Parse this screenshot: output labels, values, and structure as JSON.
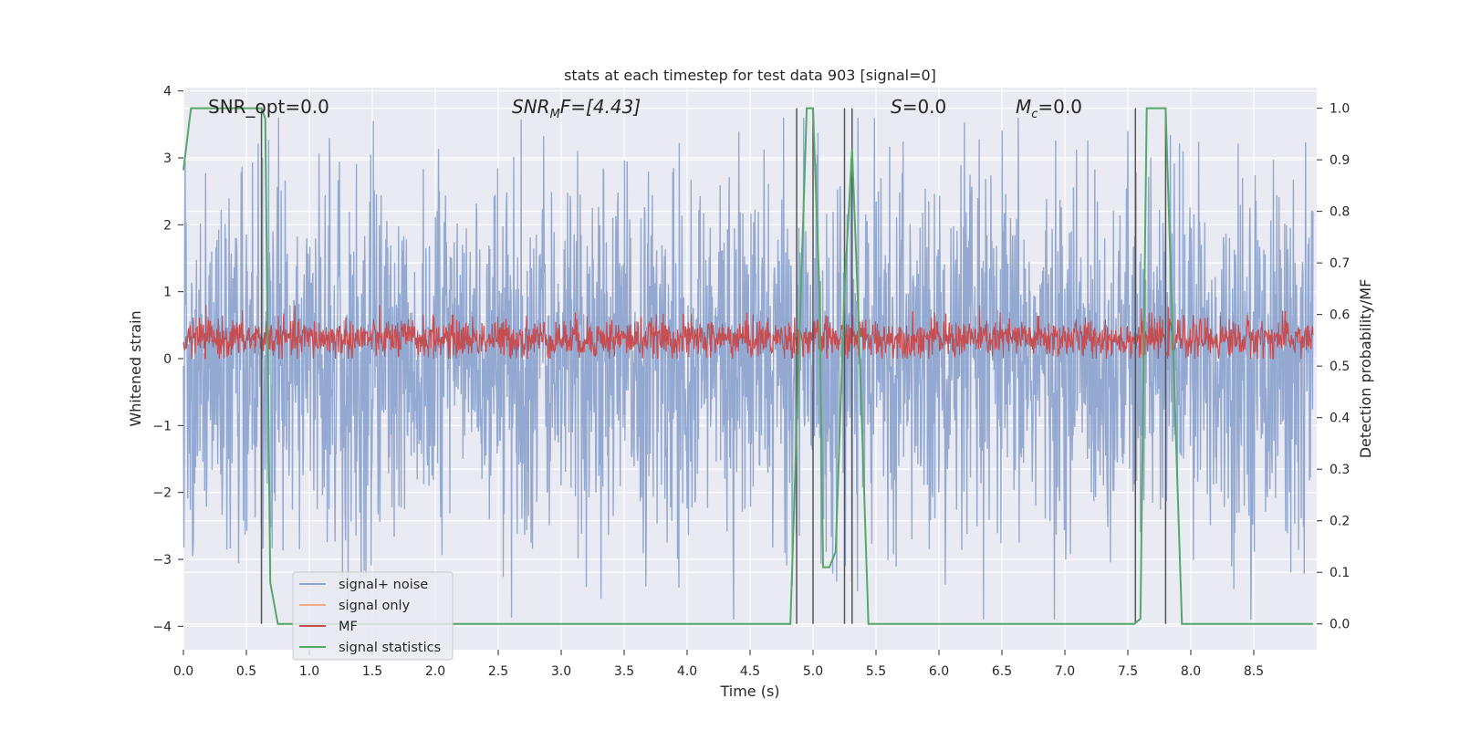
{
  "chart_data": {
    "type": "line",
    "title": "stats at each timestep for test data 903 [signal=0]",
    "xlabel": "Time (s)",
    "ylabel": "Whitened strain",
    "ylabel_right": "Detection probability/MF",
    "xlim": [
      0.0,
      9.0
    ],
    "ylim": [
      -4.35,
      4.05
    ],
    "ylim_right": [
      -0.05,
      1.04
    ],
    "xticks": [
      "0.0",
      "0.5",
      "1.0",
      "1.5",
      "2.0",
      "2.5",
      "3.0",
      "3.5",
      "4.0",
      "4.5",
      "5.0",
      "5.5",
      "6.0",
      "6.5",
      "7.0",
      "7.5",
      "8.0",
      "8.5"
    ],
    "xtick_values": [
      0.0,
      0.5,
      1.0,
      1.5,
      2.0,
      2.5,
      3.0,
      3.5,
      4.0,
      4.5,
      5.0,
      5.5,
      6.0,
      6.5,
      7.0,
      7.5,
      8.0,
      8.5
    ],
    "yticks": [
      "4",
      "3",
      "2",
      "1",
      "0",
      "−1",
      "−2",
      "−3",
      "−4"
    ],
    "ytick_values": [
      4,
      3,
      2,
      1,
      0,
      -1,
      -2,
      -3,
      -4
    ],
    "yticks_right": [
      "1.0",
      "0.9",
      "0.8",
      "0.7",
      "0.6",
      "0.5",
      "0.4",
      "0.3",
      "0.2",
      "0.1",
      "0.0"
    ],
    "ytick_right_values": [
      1.0,
      0.9,
      0.8,
      0.7,
      0.6,
      0.5,
      0.4,
      0.3,
      0.2,
      0.1,
      0.0
    ],
    "grid": true,
    "legend_position": "lower-left",
    "annotations": {
      "snr_opt": "SNR_opt=0.0",
      "snr_mf_main": "SNR",
      "snr_mf_sub": "M",
      "snr_mf_tail": "F=[4.43]",
      "s_main": "S",
      "s_tail": "=0.0",
      "mc_main": "M",
      "mc_sub": "c",
      "mc_tail": "=0.0"
    },
    "series": [
      {
        "name": "signal+ noise",
        "color": "#8fa5cf",
        "description_values": "whitened noise, roughly between -3.9 and 3.6",
        "band": {
          "min": -3.9,
          "max": 3.6,
          "typical_abs": 1.3
        }
      },
      {
        "name": "signal only",
        "color": "#f0a987",
        "values": []
      },
      {
        "name": "MF",
        "color": "#c44e52",
        "band": {
          "min": 0.0,
          "max": 0.8,
          "center": 0.3
        }
      },
      {
        "name": "signal statistics",
        "color": "#55a868",
        "axis": "right",
        "x": [
          0.0,
          0.06,
          0.1,
          0.5,
          0.55,
          0.62,
          0.65,
          0.69,
          0.75,
          1.0,
          2.0,
          3.0,
          4.0,
          4.5,
          4.82,
          4.95,
          5.0,
          5.05,
          5.08,
          5.13,
          5.18,
          5.25,
          5.31,
          5.36,
          5.44,
          5.6,
          6.0,
          7.0,
          7.5,
          7.55,
          7.6,
          7.65,
          7.8,
          7.87,
          7.93,
          8.0,
          8.5,
          8.97
        ],
        "y": [
          0.88,
          1.0,
          1.0,
          1.0,
          1.0,
          1.0,
          0.98,
          0.08,
          0.0,
          0.0,
          0.0,
          0.0,
          0.0,
          0.0,
          0.0,
          1.0,
          1.0,
          0.65,
          0.11,
          0.11,
          0.14,
          0.65,
          0.92,
          0.6,
          0.0,
          0.0,
          0.0,
          0.0,
          0.0,
          0.0,
          0.01,
          1.0,
          1.0,
          0.45,
          0.0,
          0.0,
          0.0,
          0.0
        ]
      }
    ],
    "vertical_lines": [
      0.62,
      4.87,
      5.0,
      5.25,
      5.31,
      7.56,
      7.8
    ]
  }
}
